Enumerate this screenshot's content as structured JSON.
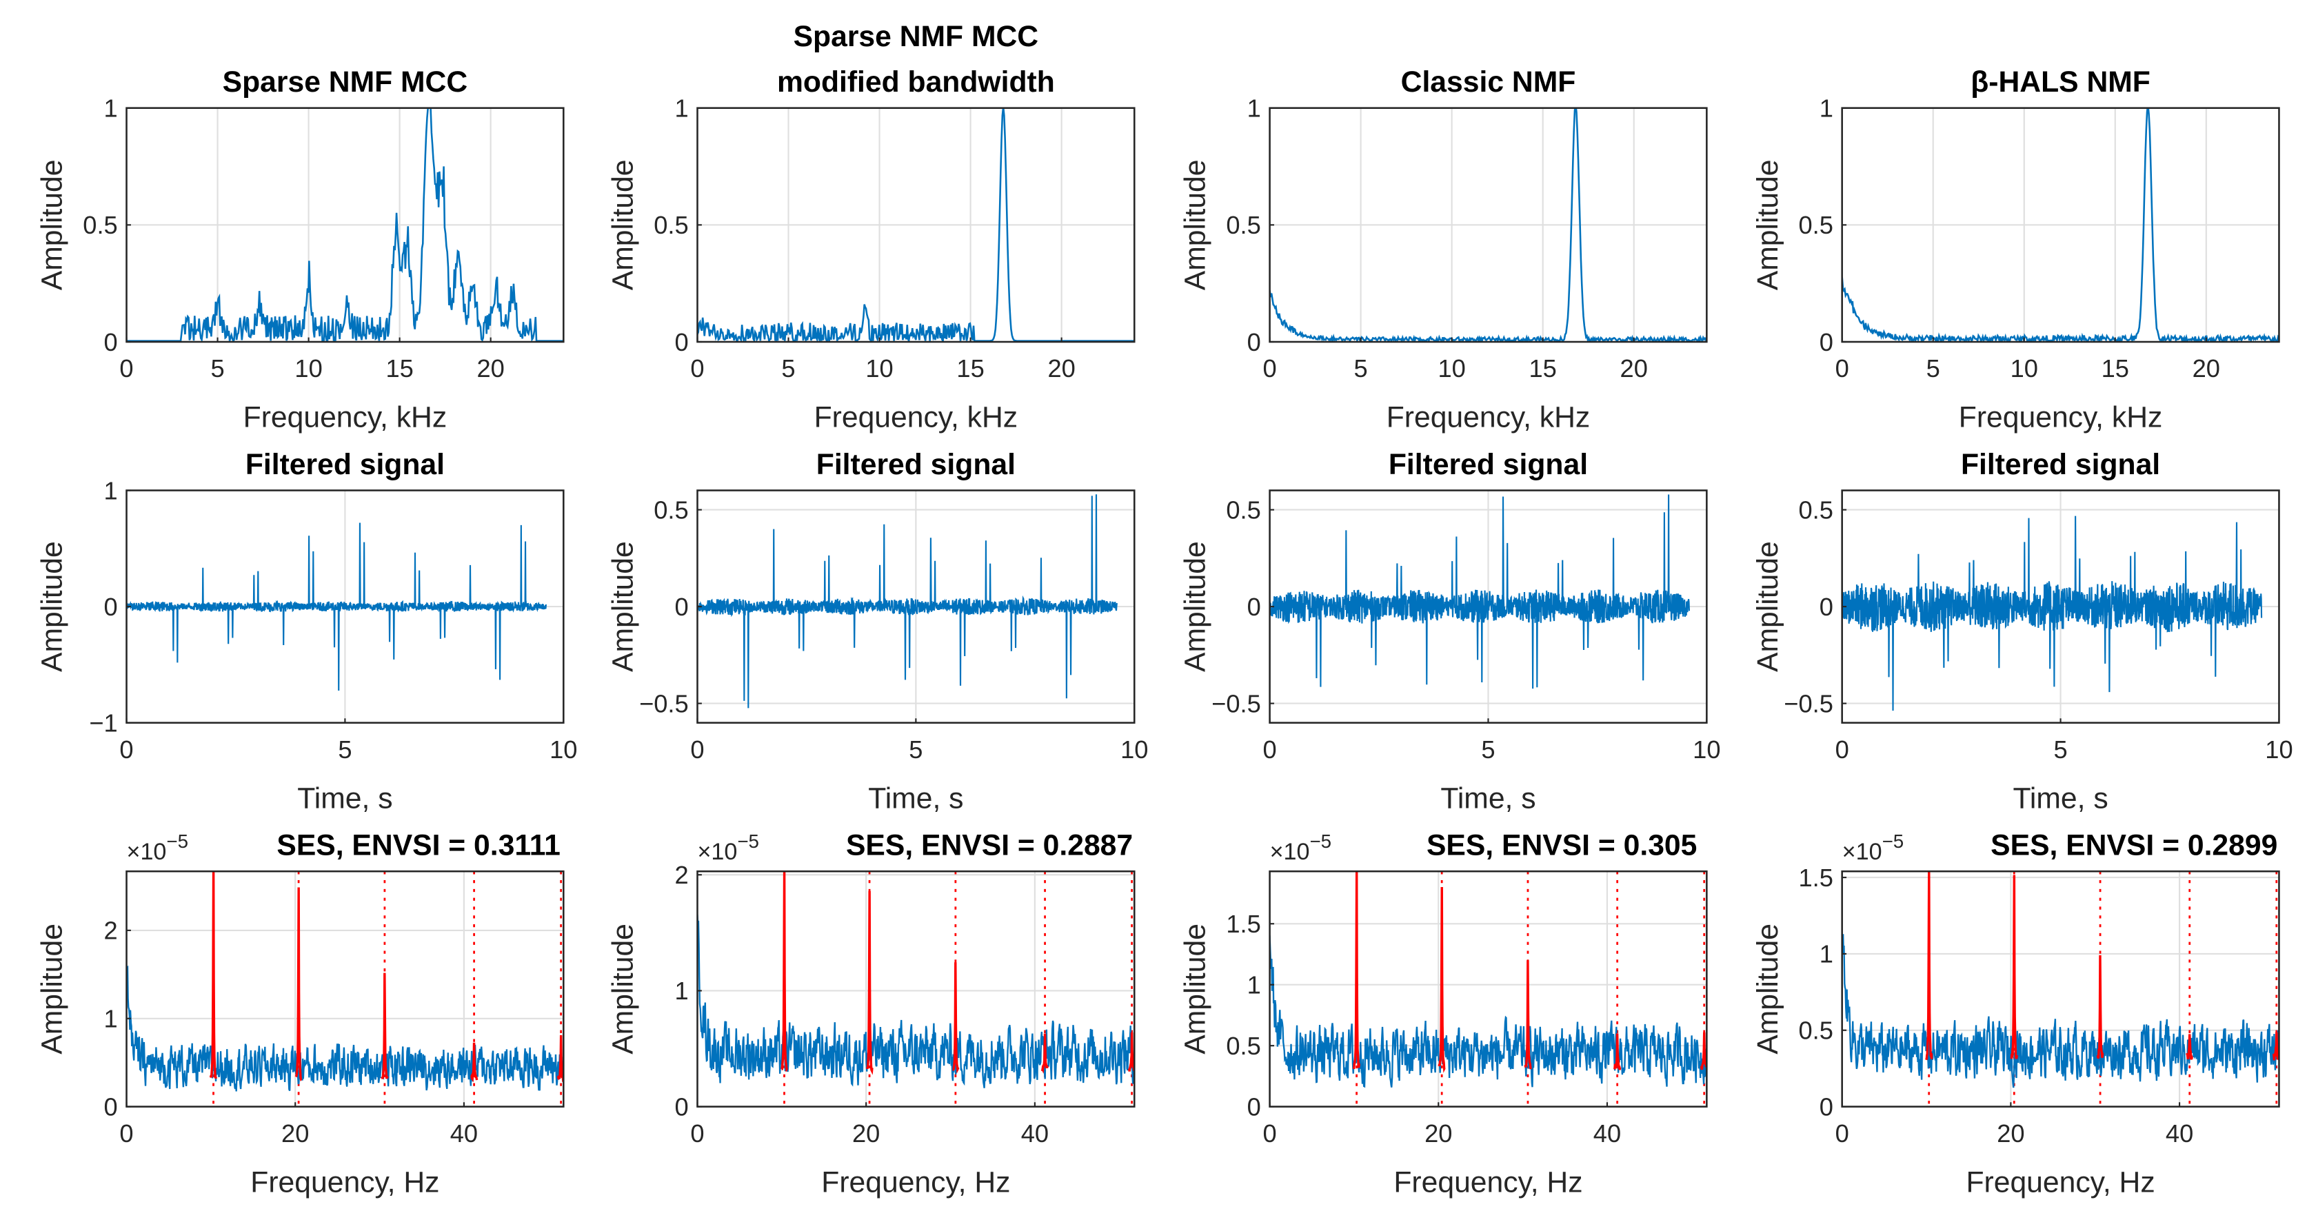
{
  "colors": {
    "series": "#0072BD",
    "harmonic": "#FF0000",
    "grid": "#DFDFDF",
    "axis": "#262626"
  },
  "chart_data": [
    {
      "type": "line",
      "row": "spectrum",
      "title": [
        "Sparse NMF MCC"
      ],
      "xlabel": "Frequency, kHz",
      "ylabel": "Amplitude",
      "xlim": [
        0,
        24
      ],
      "ylim": [
        0,
        1
      ],
      "xticks": [
        "0",
        "5",
        "10",
        "15",
        "20"
      ],
      "yticks": [
        "0",
        "0.5",
        "1"
      ],
      "xtickvals": [
        0,
        5,
        10,
        15,
        20
      ],
      "ytickvals": [
        0,
        0.5,
        1
      ],
      "series": {
        "noise_band_khz": [
          3,
          22.5
        ],
        "noise_level": 0.07,
        "low_decay": 0,
        "peaks": [
          {
            "f": 5,
            "a": 0.12,
            "w": 0.2
          },
          {
            "f": 7.3,
            "a": 0.13,
            "w": 0.2
          },
          {
            "f": 10,
            "a": 0.26,
            "w": 0.2
          },
          {
            "f": 12.1,
            "a": 0.15,
            "w": 0.2
          },
          {
            "f": 14.8,
            "a": 0.5,
            "w": 0.25
          },
          {
            "f": 15.4,
            "a": 0.45,
            "w": 0.3
          },
          {
            "f": 16.6,
            "a": 1.0,
            "w": 0.35
          },
          {
            "f": 17.3,
            "a": 0.75,
            "w": 0.35
          },
          {
            "f": 18.2,
            "a": 0.35,
            "w": 0.3
          },
          {
            "f": 19,
            "a": 0.25,
            "w": 0.25
          },
          {
            "f": 20.3,
            "a": 0.2,
            "w": 0.3
          },
          {
            "f": 21.2,
            "a": 0.18,
            "w": 0.25
          }
        ]
      }
    },
    {
      "type": "line",
      "row": "spectrum",
      "title": [
        "Sparse NMF MCC",
        "modified bandwidth"
      ],
      "xlabel": "Frequency, kHz",
      "ylabel": "Amplitude",
      "xlim": [
        0,
        24
      ],
      "ylim": [
        0,
        1
      ],
      "xticks": [
        "0",
        "5",
        "10",
        "15",
        "20"
      ],
      "yticks": [
        "0",
        "0.5",
        "1"
      ],
      "xtickvals": [
        0,
        5,
        10,
        15,
        20
      ],
      "ytickvals": [
        0,
        0.5,
        1
      ],
      "series": {
        "noise_band_khz": [
          0,
          15.2
        ],
        "noise_level": 0.05,
        "low_decay": 0.03,
        "peaks": [
          {
            "f": 9.2,
            "a": 0.17,
            "w": 0.15
          },
          {
            "f": 16.8,
            "a": 1.0,
            "w": 0.25
          }
        ]
      }
    },
    {
      "type": "line",
      "row": "spectrum",
      "title": [
        "Classic NMF"
      ],
      "xlabel": "Frequency, kHz",
      "ylabel": "Amplitude",
      "xlim": [
        0,
        24
      ],
      "ylim": [
        0,
        1
      ],
      "xticks": [
        "0",
        "5",
        "10",
        "15",
        "20"
      ],
      "yticks": [
        "0",
        "0.5",
        "1"
      ],
      "xtickvals": [
        0,
        5,
        10,
        15,
        20
      ],
      "ytickvals": [
        0,
        0.5,
        1
      ],
      "series": {
        "noise_band_khz": [
          0,
          24
        ],
        "noise_level": 0.01,
        "low_decay": 0.2,
        "peaks": [
          {
            "f": 16.8,
            "a": 1.0,
            "w": 0.28
          }
        ]
      }
    },
    {
      "type": "line",
      "row": "spectrum",
      "title": [
        "β-HALS NMF"
      ],
      "xlabel": "Frequency, kHz",
      "ylabel": "Amplitude",
      "xlim": [
        0,
        24
      ],
      "ylim": [
        0,
        1
      ],
      "xticks": [
        "0",
        "5",
        "10",
        "15",
        "20"
      ],
      "yticks": [
        "0",
        "0.5",
        "1"
      ],
      "xtickvals": [
        0,
        5,
        10,
        15,
        20
      ],
      "ytickvals": [
        0,
        0.5,
        1
      ],
      "series": {
        "noise_band_khz": [
          0,
          24
        ],
        "noise_level": 0.015,
        "low_decay": 0.28,
        "peaks": [
          {
            "f": 16.8,
            "a": 1.0,
            "w": 0.28
          }
        ]
      }
    },
    {
      "type": "line",
      "row": "time",
      "title": [
        "Filtered signal"
      ],
      "xlabel": "Time, s",
      "ylabel": "Amplitude",
      "xlim": [
        0,
        10
      ],
      "ylim": [
        -1,
        1
      ],
      "xticks": [
        "0",
        "5",
        "10"
      ],
      "yticks": [
        "−1",
        "0",
        "1"
      ],
      "xtickvals": [
        0,
        5,
        10
      ],
      "ytickvals": [
        -1,
        0,
        1
      ],
      "series": {
        "duration_s": 9.6,
        "impulse_rate_hz": 10.3,
        "impulse_peak": 0.75,
        "noise_level": 0.04
      }
    },
    {
      "type": "line",
      "row": "time",
      "title": [
        "Filtered signal"
      ],
      "xlabel": "Time, s",
      "ylabel": "Amplitude",
      "xlim": [
        0,
        10
      ],
      "ylim": [
        -0.6,
        0.6
      ],
      "xticks": [
        "0",
        "5",
        "10"
      ],
      "yticks": [
        "−0.5",
        "0",
        "0.5"
      ],
      "xtickvals": [
        0,
        5,
        10
      ],
      "ytickvals": [
        -0.5,
        0,
        0.5
      ],
      "series": {
        "duration_s": 9.6,
        "impulse_rate_hz": 10.3,
        "impulse_peak": 0.6,
        "noise_level": 0.04
      }
    },
    {
      "type": "line",
      "row": "time",
      "title": [
        "Filtered signal"
      ],
      "xlabel": "Time, s",
      "ylabel": "Amplitude",
      "xlim": [
        0,
        10
      ],
      "ylim": [
        -0.6,
        0.6
      ],
      "xticks": [
        "0",
        "5",
        "10"
      ],
      "yticks": [
        "−0.5",
        "0",
        "0.5"
      ],
      "xtickvals": [
        0,
        5,
        10
      ],
      "ytickvals": [
        -0.5,
        0,
        0.5
      ],
      "series": {
        "duration_s": 9.6,
        "impulse_rate_hz": 10.3,
        "impulse_peak": 0.6,
        "noise_level": 0.08
      }
    },
    {
      "type": "line",
      "row": "time",
      "title": [
        "Filtered signal"
      ],
      "xlabel": "Time, s",
      "ylabel": "Amplitude",
      "xlim": [
        0,
        10
      ],
      "ylim": [
        -0.6,
        0.6
      ],
      "xticks": [
        "0",
        "5",
        "10"
      ],
      "yticks": [
        "−0.5",
        "0",
        "0.5"
      ],
      "xtickvals": [
        0,
        5,
        10
      ],
      "ytickvals": [
        -0.5,
        0,
        0.5
      ],
      "series": {
        "duration_s": 9.6,
        "impulse_rate_hz": 10.3,
        "impulse_peak": 0.58,
        "noise_level": 0.12
      }
    },
    {
      "type": "line",
      "row": "envelope",
      "title": [
        "SES, ENVSI = 0.3111"
      ],
      "exponent": "×10",
      "exponent_power": "−5",
      "xlabel": "Frequency, Hz",
      "ylabel": "Amplitude",
      "xlim": [
        0,
        51.8
      ],
      "ylim": [
        0,
        2.67
      ],
      "xticks": [
        "0",
        "20",
        "40"
      ],
      "yticks": [
        "0",
        "1",
        "2"
      ],
      "xtickvals": [
        0,
        20,
        40
      ],
      "ytickvals": [
        0,
        1,
        2
      ],
      "series": {
        "harmonics_hz": [
          10.3,
          20.4,
          30.6,
          41.2,
          51.5
        ],
        "harmonic_peaks": [
          2.7,
          2.45,
          1.5,
          0.72,
          0.78
        ],
        "noise_level": 0.45,
        "dc": 1.15
      }
    },
    {
      "type": "line",
      "row": "envelope",
      "title": [
        "SES, ENVSI = 0.2887"
      ],
      "exponent": "×10",
      "exponent_power": "−5",
      "xlabel": "Frequency, Hz",
      "ylabel": "Amplitude",
      "xlim": [
        0,
        51.8
      ],
      "ylim": [
        0,
        2.03
      ],
      "xticks": [
        "0",
        "20",
        "40"
      ],
      "yticks": [
        "0",
        "1",
        "2"
      ],
      "xtickvals": [
        0,
        20,
        40
      ],
      "ytickvals": [
        0,
        1,
        2
      ],
      "series": {
        "harmonics_hz": [
          10.3,
          20.4,
          30.6,
          41.2,
          51.5
        ],
        "harmonic_peaks": [
          2.05,
          1.85,
          1.2,
          0.6,
          0.6
        ],
        "noise_level": 0.45,
        "dc": 1.05
      }
    },
    {
      "type": "line",
      "row": "envelope",
      "title": [
        "SES, ENVSI = 0.305"
      ],
      "exponent": "×10",
      "exponent_power": "−5",
      "xlabel": "Frequency, Hz",
      "ylabel": "Amplitude",
      "xlim": [
        0,
        51.8
      ],
      "ylim": [
        0,
        1.93
      ],
      "xticks": [
        "0",
        "20",
        "40"
      ],
      "yticks": [
        "0",
        "0.5",
        "1",
        "1.5"
      ],
      "xtickvals": [
        0,
        20,
        40
      ],
      "ytickvals": [
        0,
        0.5,
        1,
        1.5
      ],
      "series": {
        "harmonics_hz": [
          10.3,
          20.4,
          30.6,
          41.2,
          51.5
        ],
        "harmonic_peaks": [
          1.95,
          1.8,
          1.18,
          0.57,
          0.58
        ],
        "noise_level": 0.42,
        "dc": 0.98
      }
    },
    {
      "type": "line",
      "row": "envelope",
      "title": [
        "SES, ENVSI = 0.2899"
      ],
      "exponent": "×10",
      "exponent_power": "−5",
      "xlabel": "Frequency, Hz",
      "ylabel": "Amplitude",
      "xlim": [
        0,
        51.8
      ],
      "ylim": [
        0,
        1.54
      ],
      "xticks": [
        "0",
        "20",
        "40"
      ],
      "yticks": [
        "0",
        "0.5",
        "1",
        "1.5"
      ],
      "xtickvals": [
        0,
        20,
        40
      ],
      "ytickvals": [
        0,
        0.5,
        1,
        1.5
      ],
      "series": {
        "harmonics_hz": [
          10.3,
          20.4,
          30.6,
          41.2,
          51.5
        ],
        "harmonic_peaks": [
          1.55,
          1.5,
          0.97,
          0.47,
          0.47
        ],
        "noise_level": 0.33,
        "dc": 0.84
      }
    }
  ]
}
